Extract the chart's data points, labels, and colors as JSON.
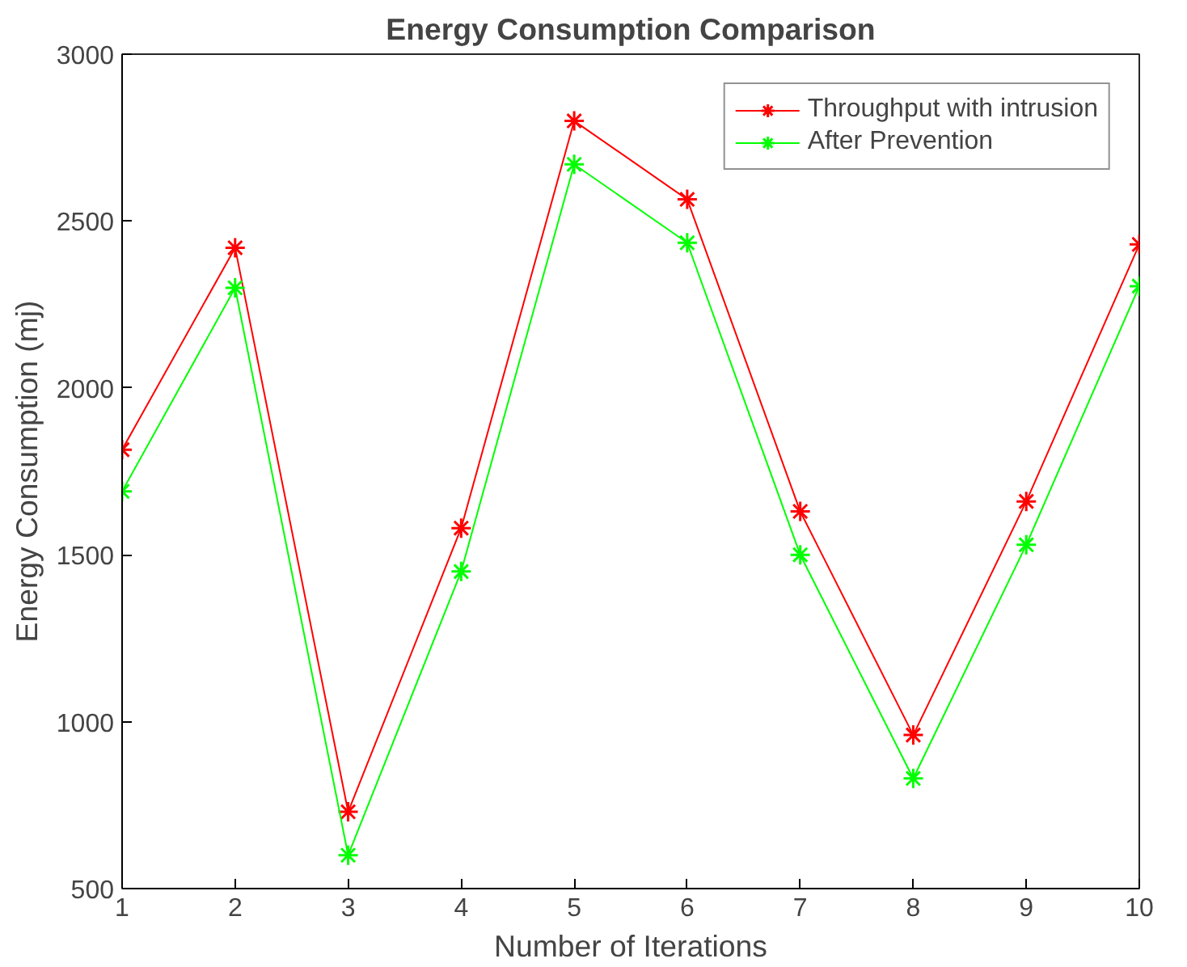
{
  "chart_data": {
    "type": "line",
    "title": "Energy Consumption Comparison",
    "xlabel": "Number of Iterations",
    "ylabel": "Energy Consumption (mj)",
    "x": [
      1,
      2,
      3,
      4,
      5,
      6,
      7,
      8,
      9,
      10
    ],
    "series": [
      {
        "name": "Throughput with intrusion",
        "color": "#ff0000",
        "values": [
          1815,
          2420,
          730,
          1580,
          2800,
          2565,
          1630,
          960,
          1660,
          2430
        ]
      },
      {
        "name": "After Prevention",
        "color": "#00ff00",
        "values": [
          1690,
          2300,
          600,
          1450,
          2670,
          2435,
          1500,
          830,
          1530,
          2305
        ]
      }
    ],
    "xlim": [
      1,
      10
    ],
    "xticks": [
      1,
      2,
      3,
      4,
      5,
      6,
      7,
      8,
      9,
      10
    ],
    "ylim": [
      500,
      3000
    ],
    "yticks": [
      500,
      1000,
      1500,
      2000,
      2500,
      3000
    ],
    "grid": false,
    "legend": "top right",
    "marker": "cross",
    "line_style": "solid"
  }
}
